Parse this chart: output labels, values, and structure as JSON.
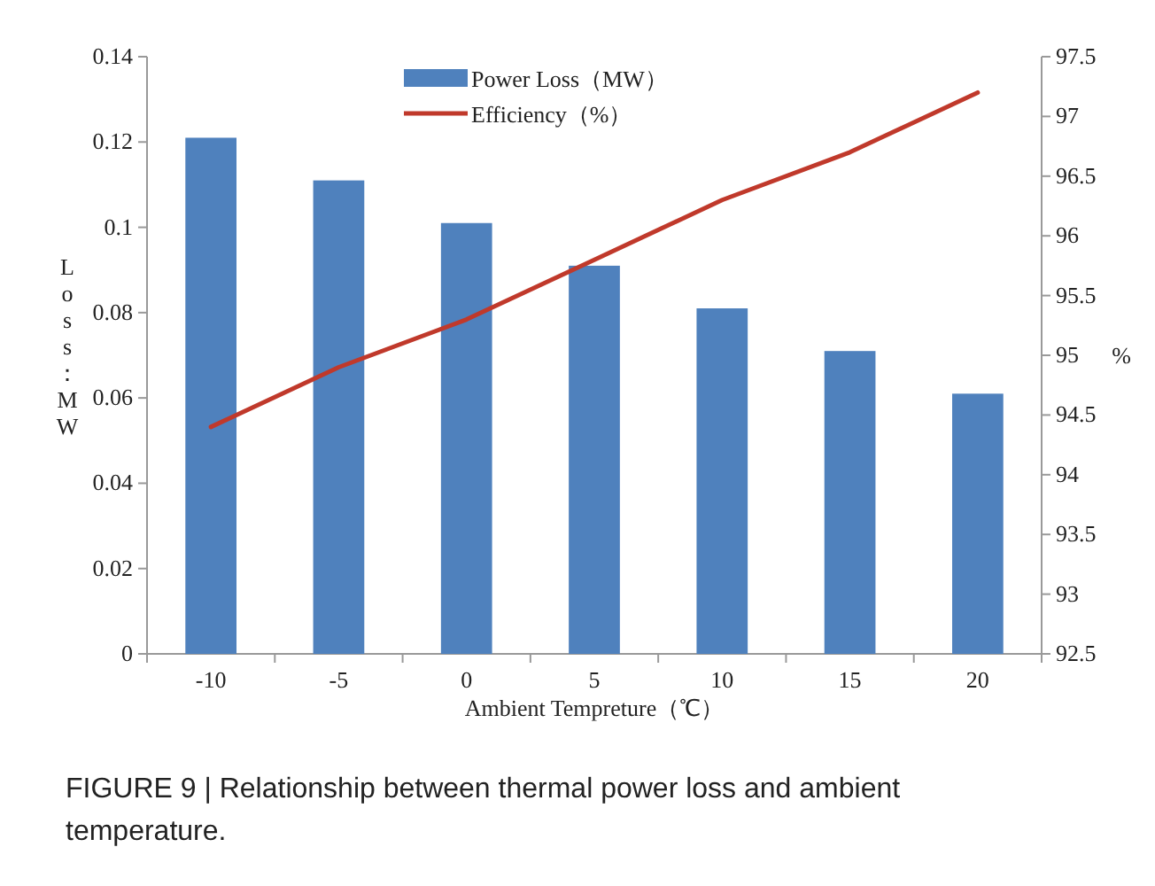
{
  "chart_data": {
    "type": "bar",
    "xlabel": "Ambient Tempreture（℃）",
    "ylabel": "Loss：MW",
    "y2label": "%",
    "categories": [
      "-10",
      "-5",
      "0",
      "5",
      "10",
      "15",
      "20"
    ],
    "series": [
      {
        "name": "Power Loss（MW）",
        "color": "#4f81bd",
        "values": [
          0.121,
          0.111,
          0.101,
          0.091,
          0.081,
          0.071,
          0.061
        ]
      },
      {
        "name": "Efficiency（%）",
        "type": "line",
        "axis": "y2",
        "color": "#c0392b",
        "values": [
          94.4,
          94.9,
          95.3,
          95.8,
          96.3,
          96.7,
          97.2
        ]
      }
    ],
    "ylim": [
      0,
      0.14
    ],
    "yticks": [
      0,
      0.02,
      0.04,
      0.06,
      0.08,
      0.1,
      0.12,
      0.14
    ],
    "y2lim": [
      92.5,
      97.5
    ],
    "y2ticks": [
      92.5,
      93,
      93.5,
      94,
      94.5,
      95,
      95.5,
      96,
      96.5,
      97,
      97.5
    ],
    "legend": "top",
    "grid": false,
    "annotations": [
      "FIGURE 9 | Relationship between thermal power loss and ambient temperature."
    ]
  }
}
